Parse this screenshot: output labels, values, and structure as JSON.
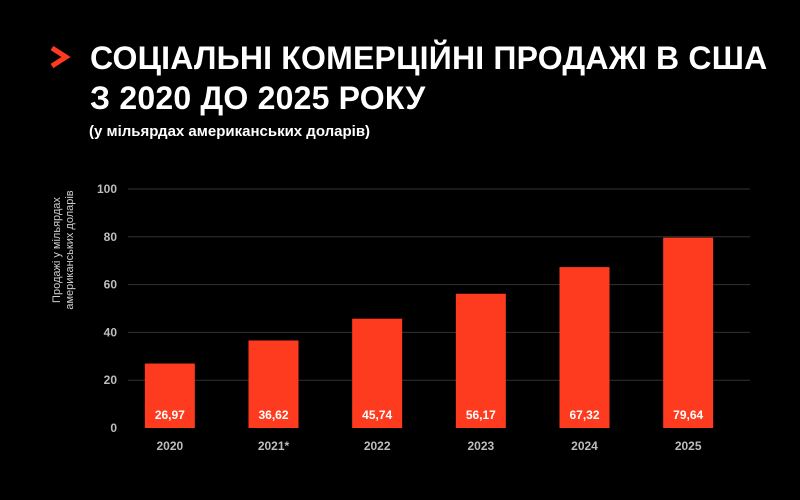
{
  "header": {
    "title": "СОЦІАЛЬНІ КОМЕРЦІЙНІ ПРОДАЖІ В США З 2020 ДО 2025 РОКУ",
    "subtitle": "(у мільярдах американських доларів)",
    "chevron_icon": "chevron-right-icon",
    "accent_color": "#ff3b1f"
  },
  "chart_data": {
    "type": "bar",
    "title": "СОЦІАЛЬНІ КОМЕРЦІЙНІ ПРОДАЖІ В США З 2020 ДО 2025 РОКУ",
    "subtitle": "(у мільярдах американських доларів)",
    "xlabel": "",
    "ylabel": "Продажі у мільярдах американських доларів",
    "categories": [
      "2020",
      "2021*",
      "2022",
      "2023",
      "2024",
      "2025"
    ],
    "values": [
      26.97,
      36.62,
      45.74,
      56.17,
      67.32,
      79.64
    ],
    "value_labels": [
      "26,97",
      "36,62",
      "45,74",
      "56,17",
      "67,32",
      "79,64"
    ],
    "ylim": [
      0,
      100
    ],
    "yticks": [
      0,
      20,
      40,
      60,
      80,
      100
    ],
    "grid": true,
    "legend": "none",
    "bar_color": "#ff3b1f",
    "grid_color": "#333333",
    "label_color": "#ffffff",
    "tick_color": "#bdbdbd"
  }
}
